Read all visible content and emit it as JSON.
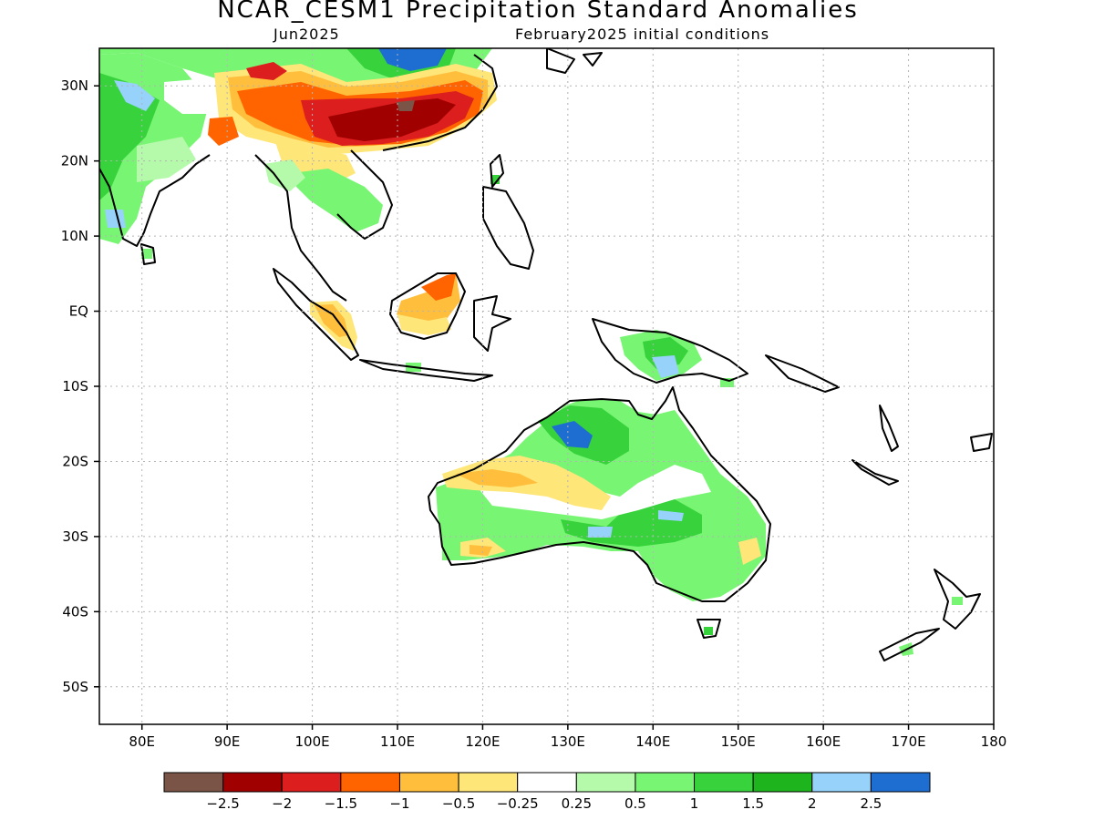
{
  "title": "NCAR_CESM1 Precipitation Standard Anomalies",
  "subtitle_left": "Jun2025",
  "subtitle_right": "February2025 initial conditions",
  "map": {
    "lon_range": [
      75,
      180
    ],
    "lat_range": [
      -55,
      35
    ],
    "lat_ticks": [
      {
        "value": 30,
        "label": "30N"
      },
      {
        "value": 20,
        "label": "20N"
      },
      {
        "value": 10,
        "label": "10N"
      },
      {
        "value": 0,
        "label": "EQ"
      },
      {
        "value": -10,
        "label": "10S"
      },
      {
        "value": -20,
        "label": "20S"
      },
      {
        "value": -30,
        "label": "30S"
      },
      {
        "value": -40,
        "label": "40S"
      },
      {
        "value": -50,
        "label": "50S"
      }
    ],
    "lon_ticks": [
      {
        "value": 80,
        "label": "80E"
      },
      {
        "value": 90,
        "label": "90E"
      },
      {
        "value": 100,
        "label": "100E"
      },
      {
        "value": 110,
        "label": "110E"
      },
      {
        "value": 120,
        "label": "120E"
      },
      {
        "value": 130,
        "label": "130E"
      },
      {
        "value": 140,
        "label": "140E"
      },
      {
        "value": 150,
        "label": "150E"
      },
      {
        "value": 160,
        "label": "160E"
      },
      {
        "value": 170,
        "label": "170E"
      },
      {
        "value": 180,
        "label": "180"
      }
    ]
  },
  "legend": {
    "colors": [
      "#7a5446",
      "#a00000",
      "#dc1e1e",
      "#ff6400",
      "#ffbe3c",
      "#ffe678",
      "#ffffff",
      "#b4faaa",
      "#78f573",
      "#37d23c",
      "#1eb41e",
      "#96d2fa",
      "#1e6ed2"
    ],
    "labels": [
      "−2.5",
      "−2",
      "−1.5",
      "−1",
      "−0.5",
      "−0.25",
      "0.25",
      "0.5",
      "1",
      "1.5",
      "2",
      "2.5"
    ]
  }
}
